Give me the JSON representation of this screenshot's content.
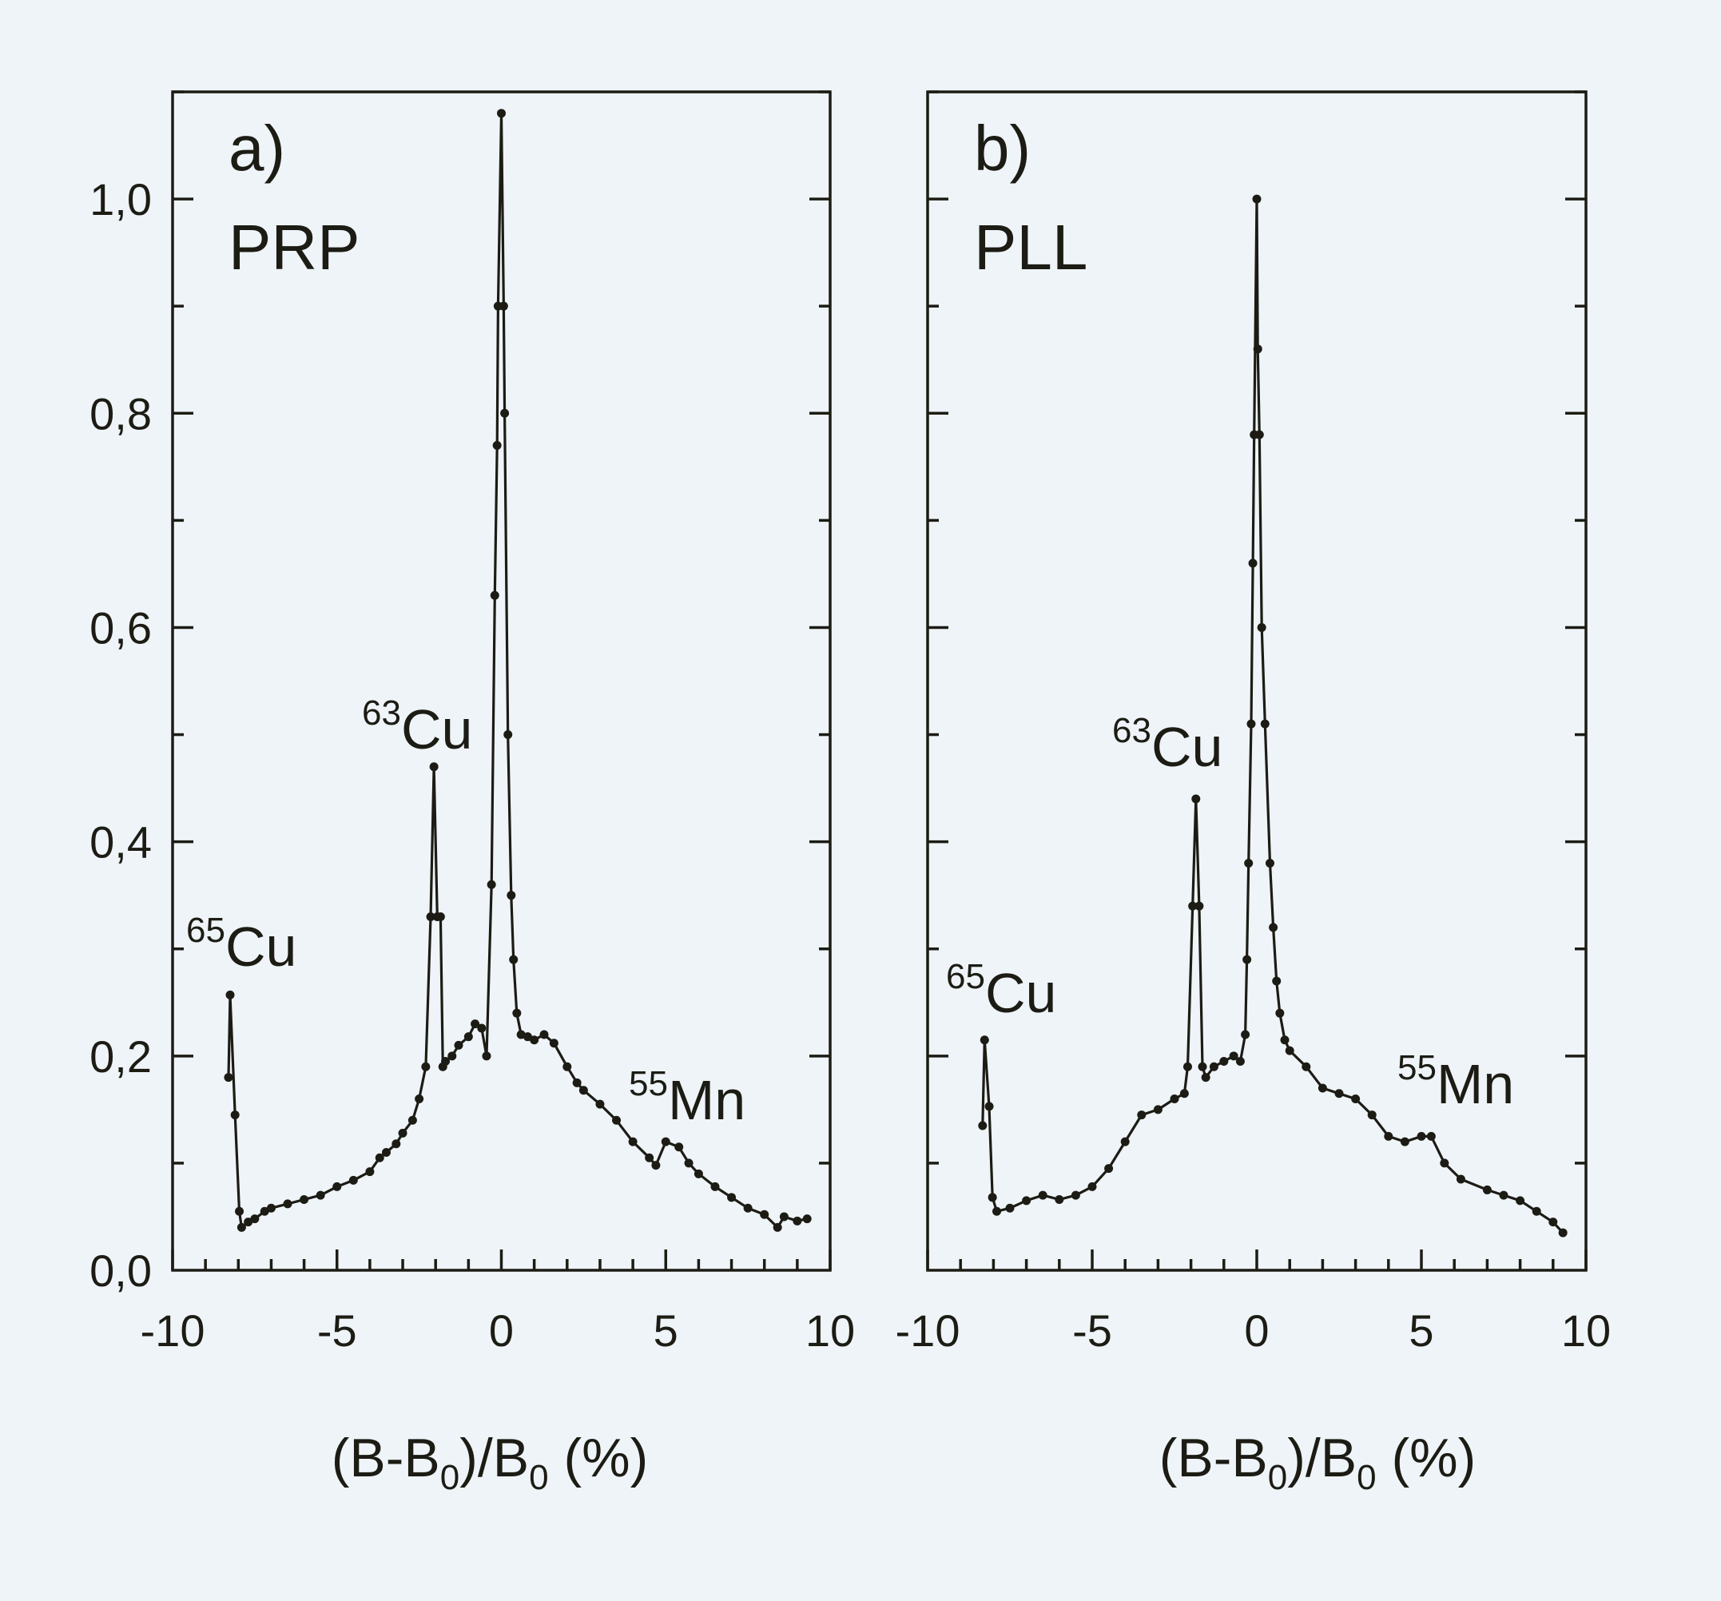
{
  "chart_data": [
    {
      "type": "line",
      "panel_label": "a)",
      "title": "PRP",
      "xlabel_parts": {
        "pre": "(B-B",
        "sub1": "0",
        "mid": ")/B",
        "sub2": "0",
        "post": " (%)"
      },
      "ylabel": "",
      "xlim": [
        -10,
        10
      ],
      "ylim": [
        0,
        1.1
      ],
      "xticks": [
        "-10",
        "-5",
        "0",
        "5",
        "10"
      ],
      "yticks": [
        "0,0",
        "0,2",
        "0,4",
        "0,6",
        "0,8",
        "1,0"
      ],
      "annotations": [
        {
          "sup": "65",
          "text": "Cu"
        },
        {
          "sup": "63",
          "text": "Cu"
        },
        {
          "sup": "55",
          "text": "Mn"
        }
      ],
      "series": [
        {
          "name": "PRP",
          "x": [
            -8.3,
            -8.25,
            -8.1,
            -7.97,
            -7.9,
            -7.7,
            -7.5,
            -7.2,
            -7.0,
            -6.5,
            -6.0,
            -5.5,
            -5.0,
            -4.5,
            -4.0,
            -3.7,
            -3.5,
            -3.2,
            -3.0,
            -2.7,
            -2.5,
            -2.3,
            -2.15,
            -2.05,
            -1.95,
            -1.85,
            -1.78,
            -1.7,
            -1.5,
            -1.3,
            -1.0,
            -0.8,
            -0.6,
            -0.45,
            -0.3,
            -0.2,
            -0.13,
            -0.1,
            0.0,
            0.07,
            0.1,
            0.2,
            0.3,
            0.37,
            0.47,
            0.6,
            0.8,
            1.0,
            1.3,
            1.6,
            2.0,
            2.3,
            2.5,
            3.0,
            3.5,
            4.0,
            4.5,
            4.7,
            5.0,
            5.4,
            5.7,
            6.0,
            6.5,
            7.0,
            7.5,
            8.0,
            8.4,
            8.6,
            9.0,
            9.3
          ],
          "y": [
            0.18,
            0.257,
            0.145,
            0.055,
            0.04,
            0.045,
            0.048,
            0.055,
            0.058,
            0.062,
            0.066,
            0.07,
            0.078,
            0.084,
            0.092,
            0.105,
            0.11,
            0.118,
            0.128,
            0.14,
            0.16,
            0.19,
            0.33,
            0.47,
            0.33,
            0.33,
            0.19,
            0.195,
            0.2,
            0.21,
            0.218,
            0.23,
            0.226,
            0.2,
            0.36,
            0.63,
            0.77,
            0.9,
            1.08,
            0.9,
            0.8,
            0.5,
            0.35,
            0.29,
            0.24,
            0.22,
            0.218,
            0.215,
            0.22,
            0.212,
            0.19,
            0.175,
            0.168,
            0.155,
            0.14,
            0.12,
            0.105,
            0.098,
            0.12,
            0.115,
            0.1,
            0.09,
            0.078,
            0.068,
            0.058,
            0.052,
            0.04,
            0.05,
            0.046,
            0.048
          ]
        }
      ]
    },
    {
      "type": "line",
      "panel_label": "b)",
      "title": "PLL",
      "xlabel_parts": {
        "pre": "(B-B",
        "sub1": "0",
        "mid": ")/B",
        "sub2": "0",
        "post": " (%)"
      },
      "ylabel": "",
      "xlim": [
        -10,
        10
      ],
      "ylim": [
        0,
        1.1
      ],
      "xticks": [
        "-10",
        "-5",
        "0",
        "5",
        "10"
      ],
      "yticks": [],
      "annotations": [
        {
          "sup": "65",
          "text": "Cu"
        },
        {
          "sup": "63",
          "text": "Cu"
        },
        {
          "sup": "55",
          "text": "Mn"
        }
      ],
      "series": [
        {
          "name": "PLL",
          "x": [
            -8.33,
            -8.27,
            -8.13,
            -8.03,
            -7.9,
            -7.5,
            -7.0,
            -6.5,
            -6.0,
            -5.5,
            -5.0,
            -4.5,
            -4.0,
            -3.5,
            -3.0,
            -2.5,
            -2.2,
            -2.1,
            -1.95,
            -1.85,
            -1.75,
            -1.65,
            -1.55,
            -1.3,
            -1.0,
            -0.7,
            -0.5,
            -0.35,
            -0.3,
            -0.25,
            -0.17,
            -0.12,
            -0.08,
            0.0,
            0.03,
            0.08,
            0.15,
            0.25,
            0.4,
            0.5,
            0.6,
            0.7,
            0.85,
            1.0,
            1.5,
            2.0,
            2.5,
            3.0,
            3.5,
            4.0,
            4.5,
            5.0,
            5.3,
            5.7,
            6.2,
            7.0,
            7.5,
            8.0,
            8.5,
            9.0,
            9.3
          ],
          "y": [
            0.135,
            0.215,
            0.153,
            0.068,
            0.055,
            0.058,
            0.065,
            0.07,
            0.066,
            0.07,
            0.078,
            0.095,
            0.12,
            0.145,
            0.15,
            0.16,
            0.165,
            0.19,
            0.34,
            0.44,
            0.34,
            0.19,
            0.18,
            0.19,
            0.195,
            0.2,
            0.195,
            0.22,
            0.29,
            0.38,
            0.51,
            0.66,
            0.78,
            1.0,
            0.86,
            0.78,
            0.6,
            0.51,
            0.38,
            0.32,
            0.27,
            0.24,
            0.215,
            0.205,
            0.19,
            0.17,
            0.165,
            0.16,
            0.145,
            0.125,
            0.12,
            0.125,
            0.125,
            0.1,
            0.085,
            0.075,
            0.07,
            0.065,
            0.055,
            0.045,
            0.035
          ]
        }
      ]
    }
  ]
}
